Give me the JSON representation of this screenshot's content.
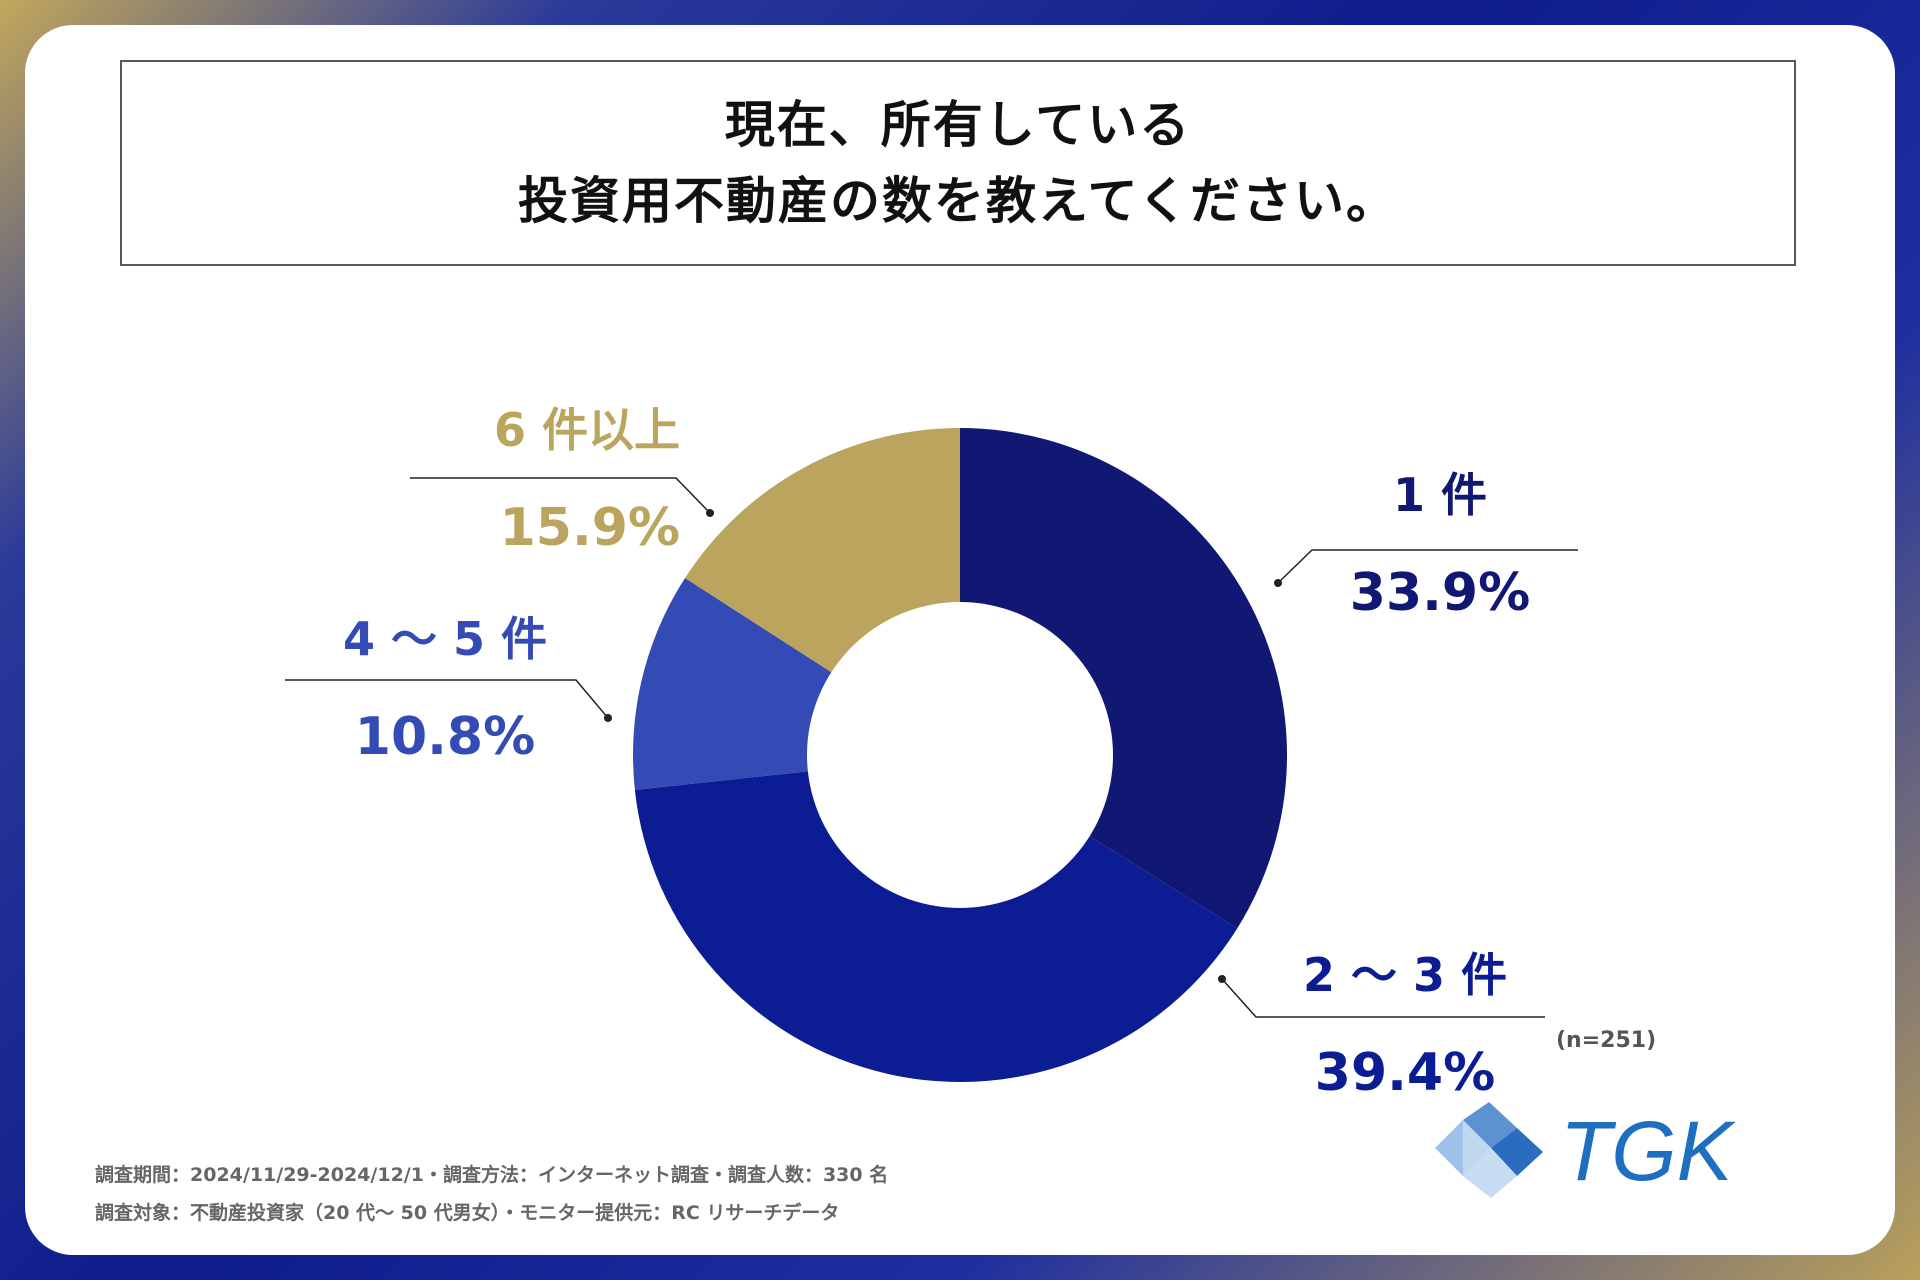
{
  "title": {
    "line1": "現在、所有している",
    "line2": "投資用不動産の数を教えてください。"
  },
  "chart_data": {
    "type": "pie",
    "variant": "donut",
    "title": "現在、所有している投資用不動産の数を教えてください。",
    "categories": [
      "1 件",
      "2 ～ 3 件",
      "4 ～ 5 件",
      "6 件以上"
    ],
    "values": [
      33.9,
      39.4,
      10.8,
      15.9
    ],
    "value_labels": [
      "33.9%",
      "39.4%",
      "10.8%",
      "15.9%"
    ],
    "colors": [
      "#101874",
      "#0c1d94",
      "#344bb6",
      "#bba55e"
    ],
    "sample_note": "(n=251)"
  },
  "footer": {
    "line1": "調査期間：2024/11/29-2024/12/1・調査方法：インターネット調査・調査人数：330 名",
    "line2": "調査対象：不動産投資家（20 代～ 50 代男女）・モニター提供元：RC リサーチデータ"
  },
  "logo": {
    "text": "TGK",
    "color": "#1e6fc0"
  }
}
